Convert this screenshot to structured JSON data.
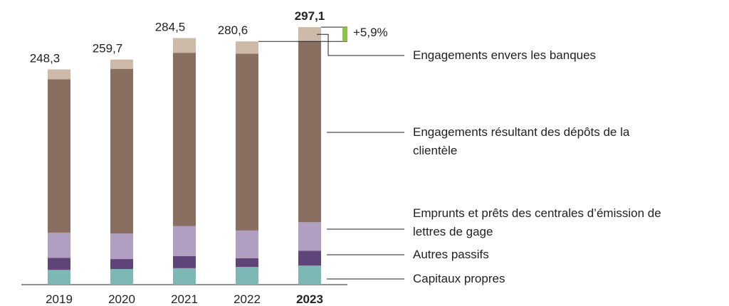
{
  "chart_data": {
    "type": "stacked_bar",
    "categories": [
      "2019",
      "2020",
      "2021",
      "2022",
      "2023"
    ],
    "series": [
      {
        "name": "Capitaux propres",
        "color": "#7eb8b4",
        "values": [
          17,
          18,
          19,
          20.5,
          22
        ]
      },
      {
        "name": "Autres passifs",
        "color": "#5e4478",
        "values": [
          14,
          11.5,
          14,
          10,
          17
        ]
      },
      {
        "name": "Emprunts et prêts des centrales d’émission de lettres de gage",
        "color": "#b09fc0",
        "values": [
          29,
          29.5,
          34.5,
          32,
          33
        ]
      },
      {
        "name": "Engagements résultant des dépôts de la clientèle",
        "color": "#8a6e60",
        "values": [
          177,
          190,
          200,
          204.1,
          208.5
        ]
      },
      {
        "name": "Engagements envers les banques",
        "color": "#cdb9a8",
        "values": [
          11.3,
          10.7,
          17,
          14,
          16.6
        ]
      }
    ],
    "totals": [
      248.3,
      259.7,
      284.5,
      280.6,
      297.1
    ],
    "total_labels": [
      "248,3",
      "259,7",
      "284,5",
      "280,6",
      "297,1"
    ],
    "change": {
      "value": 5.9,
      "label": "+5,9%",
      "color": "#8dc63f"
    }
  }
}
